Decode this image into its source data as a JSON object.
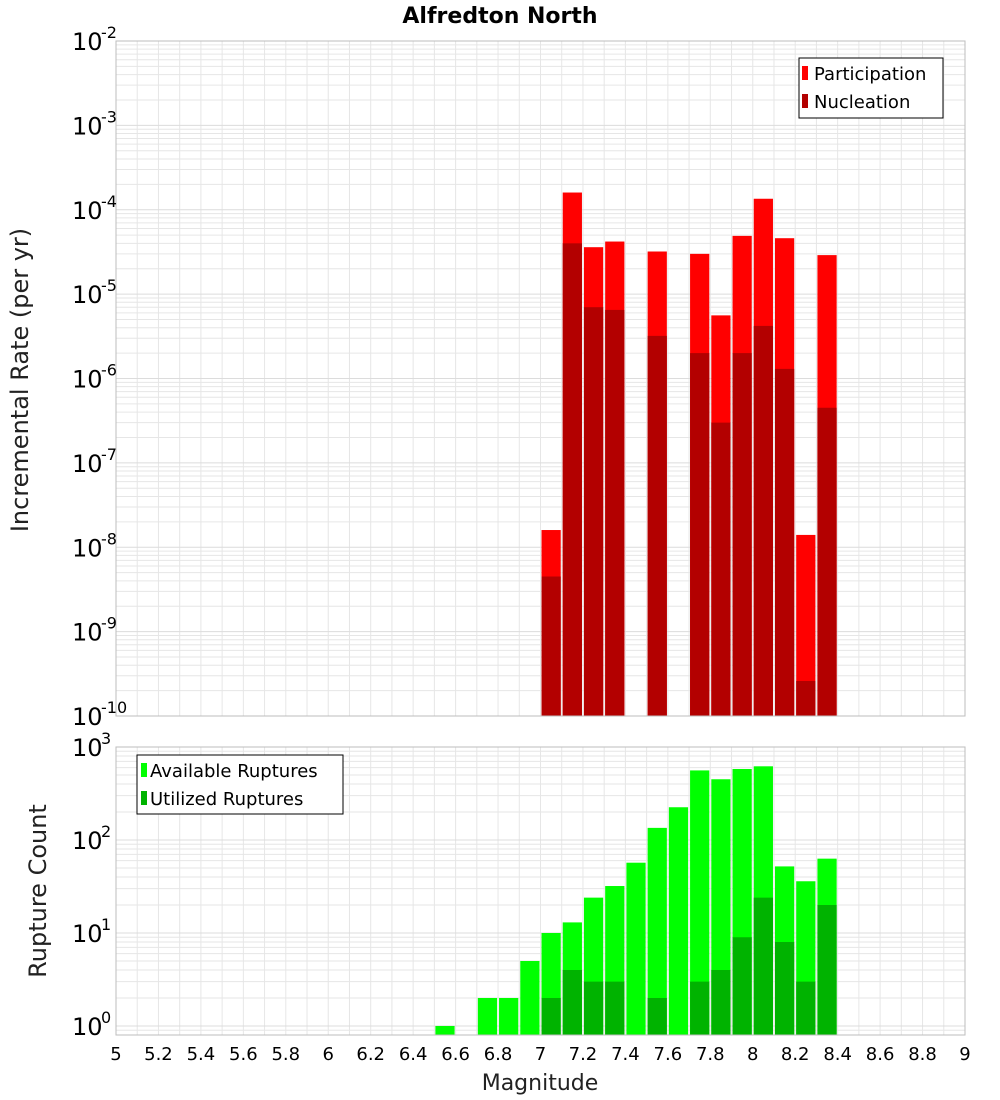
{
  "chart_data": [
    {
      "type": "bar",
      "title": "Alfredton North",
      "ylabel": "Incremental Rate (per yr)",
      "xlabel": "",
      "yscale": "log",
      "ylim": [
        1e-10,
        0.01
      ],
      "xlim": [
        5,
        9
      ],
      "bin_width": 0.1,
      "legend_position": "top-right",
      "series": [
        {
          "name": "Participation",
          "color": "#ff0000",
          "x": [
            7.05,
            7.15,
            7.25,
            7.35,
            7.55,
            7.75,
            7.85,
            7.95,
            8.05,
            8.15,
            8.25,
            8.35
          ],
          "values": [
            1.6e-08,
            0.00016,
            3.6e-05,
            4.2e-05,
            3.2e-05,
            3e-05,
            5.6e-06,
            4.9e-05,
            0.000135,
            4.6e-05,
            1.4e-08,
            2.9e-05
          ]
        },
        {
          "name": "Nucleation",
          "color": "#b30000",
          "x": [
            7.05,
            7.15,
            7.25,
            7.35,
            7.55,
            7.75,
            7.85,
            7.95,
            8.05,
            8.15,
            8.25,
            8.35
          ],
          "values": [
            4.5e-09,
            4e-05,
            7e-06,
            6.5e-06,
            3.2e-06,
            2e-06,
            3e-07,
            2e-06,
            4.2e-06,
            1.3e-06,
            2.6e-10,
            4.5e-07
          ]
        }
      ]
    },
    {
      "type": "bar",
      "title": "",
      "ylabel": "Rupture Count",
      "xlabel": "Magnitude",
      "yscale": "log",
      "ylim": [
        0.8,
        1000
      ],
      "xlim": [
        5,
        9
      ],
      "bin_width": 0.1,
      "legend_position": "top-left",
      "x_ticks": [
        "5",
        "5.2",
        "5.4",
        "5.6",
        "5.8",
        "6",
        "6.2",
        "6.4",
        "6.6",
        "6.8",
        "7",
        "7.2",
        "7.4",
        "7.6",
        "7.8",
        "8",
        "8.2",
        "8.4",
        "8.6",
        "8.8",
        "9"
      ],
      "series": [
        {
          "name": "Available Ruptures",
          "color": "#00ff00",
          "x": [
            6.55,
            6.75,
            6.85,
            6.95,
            7.05,
            7.15,
            7.25,
            7.35,
            7.45,
            7.55,
            7.65,
            7.75,
            7.85,
            7.95,
            8.05,
            8.15,
            8.25,
            8.35
          ],
          "values": [
            1,
            2,
            2,
            5,
            10,
            13,
            24,
            32,
            57,
            135,
            225,
            560,
            450,
            580,
            620,
            52,
            36,
            63
          ]
        },
        {
          "name": "Utilized Ruptures",
          "color": "#00b300",
          "x": [
            7.05,
            7.15,
            7.25,
            7.35,
            7.55,
            7.75,
            7.85,
            7.95,
            8.05,
            8.15,
            8.25,
            8.35
          ],
          "values": [
            2,
            4,
            3,
            3,
            2,
            3,
            4,
            9,
            24,
            8,
            3,
            20
          ]
        }
      ]
    }
  ]
}
